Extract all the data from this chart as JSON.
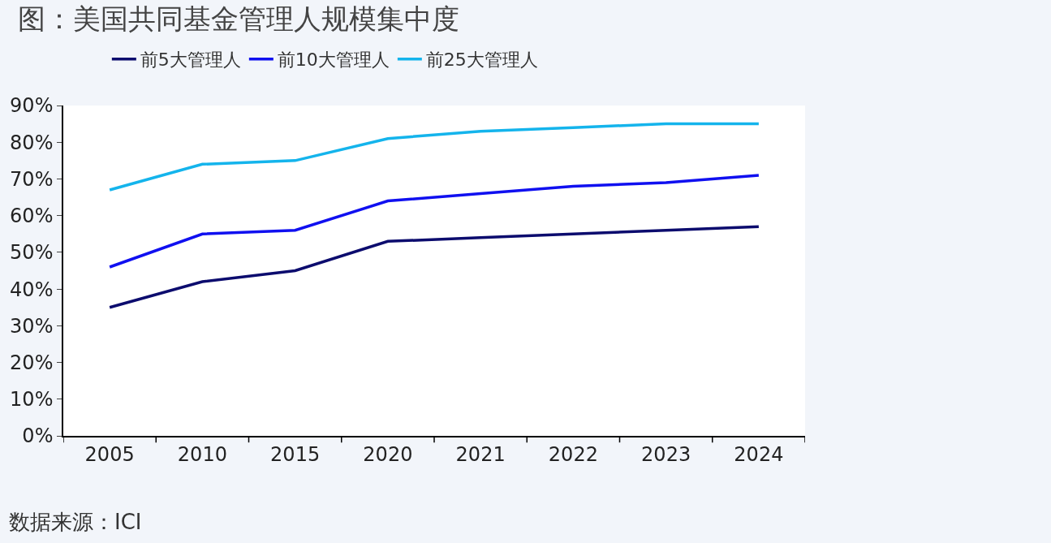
{
  "chart_data": {
    "type": "line",
    "title": "图：美国共同基金管理人规模集中度",
    "categories": [
      "2005",
      "2010",
      "2015",
      "2020",
      "2021",
      "2022",
      "2023",
      "2024"
    ],
    "series": [
      {
        "name": "前5大管理人",
        "color": "#0c0c6e",
        "values": [
          35,
          42,
          45,
          53,
          54,
          55,
          56,
          57
        ]
      },
      {
        "name": "前10大管理人",
        "color": "#1010f0",
        "values": [
          46,
          55,
          56,
          64,
          66,
          68,
          69,
          71
        ]
      },
      {
        "name": "前25大管理人",
        "color": "#14b4ec",
        "values": [
          67,
          74,
          75,
          81,
          83,
          84,
          85,
          85
        ]
      }
    ],
    "ylim": [
      0,
      90
    ],
    "yticks": [
      {
        "value": 0,
        "label": "0%"
      },
      {
        "value": 10,
        "label": "10%"
      },
      {
        "value": 20,
        "label": "20%"
      },
      {
        "value": 30,
        "label": "30%"
      },
      {
        "value": 40,
        "label": "40%"
      },
      {
        "value": 50,
        "label": "50%"
      },
      {
        "value": 60,
        "label": "60%"
      },
      {
        "value": 70,
        "label": "70%"
      },
      {
        "value": 80,
        "label": "80%"
      },
      {
        "value": 90,
        "label": "90%"
      }
    ],
    "grid": false,
    "legend": "top",
    "marker": "none",
    "line_style": "solid",
    "annotations": [
      "数据来源：ICI"
    ]
  }
}
